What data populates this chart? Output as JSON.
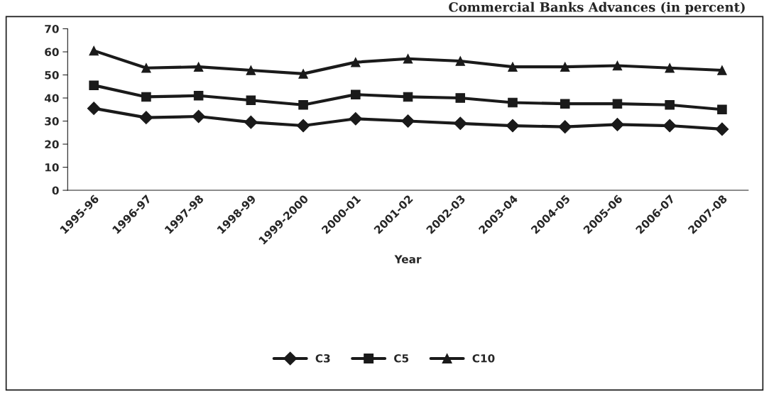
{
  "chart_data": {
    "type": "line",
    "title": "Commercial Banks Advances (in percent)",
    "xlabel": "Year",
    "categories": [
      "1995-96",
      "1996-97",
      "1997-98",
      "1998-99",
      "1999-2000",
      "2000-01",
      "2001-02",
      "2002-03",
      "2003-04",
      "2004-05",
      "2005-06",
      "2006-07",
      "2007-08"
    ],
    "series": [
      {
        "name": "C3",
        "color": "#1a1a1a",
        "marker": "diamond",
        "values": [
          35.5,
          31.5,
          32,
          29.5,
          28,
          31,
          30,
          29,
          28,
          27.5,
          28.5,
          28,
          26.5
        ]
      },
      {
        "name": "C5",
        "color": "#1a1a1a",
        "marker": "square",
        "values": [
          45.5,
          40.5,
          41,
          39,
          37,
          41.5,
          40.5,
          40,
          38,
          37.5,
          37.5,
          37,
          35
        ]
      },
      {
        "name": "C10",
        "color": "#1a1a1a",
        "marker": "triangle",
        "values": [
          60.5,
          53,
          53.5,
          52,
          50.5,
          55.5,
          57,
          56,
          53.5,
          53.5,
          54,
          53,
          52
        ]
      }
    ],
    "ylim": [
      0,
      70
    ],
    "yticks": [
      0,
      10,
      20,
      30,
      40,
      50,
      60,
      70
    ],
    "grid": false,
    "legend": "bottom",
    "line_style": "solid"
  }
}
